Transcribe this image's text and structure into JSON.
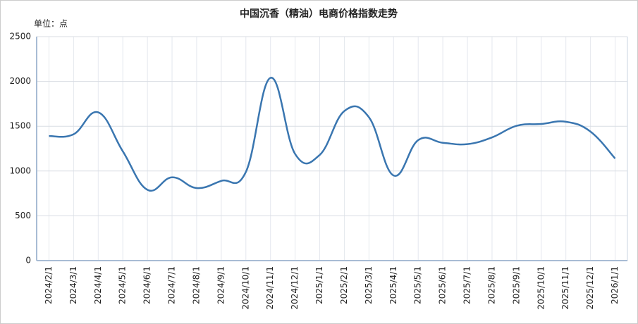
{
  "chart_data": {
    "type": "line",
    "title": "中国沉香（精油）电商价格指数走势",
    "unit": "单位：点",
    "categories": [
      "2024/2/1",
      "2024/3/1",
      "2024/4/1",
      "2024/5/1",
      "2024/6/1",
      "2024/7/1",
      "2024/8/1",
      "2024/9/1",
      "2024/10/1",
      "2024/11/1",
      "2024/12/1",
      "2025/1/1",
      "2025/2/1",
      "2025/3/1",
      "2025/4/1",
      "2025/5/1",
      "2025/6/1",
      "2025/7/1",
      "2025/8/1",
      "2025/9/1",
      "2025/10/1",
      "2025/11/1",
      "2025/12/1",
      "2026/1/1"
    ],
    "values": [
      1390,
      1410,
      1655,
      1220,
      790,
      930,
      810,
      890,
      990,
      2040,
      1190,
      1180,
      1670,
      1600,
      950,
      1345,
      1315,
      1300,
      1375,
      1505,
      1525,
      1550,
      1440,
      1140
    ],
    "color": "#3a76b0",
    "ylim": [
      0,
      2500
    ],
    "yticks": [
      0,
      500,
      1000,
      1500,
      2000,
      2500
    ],
    "grid": true
  }
}
